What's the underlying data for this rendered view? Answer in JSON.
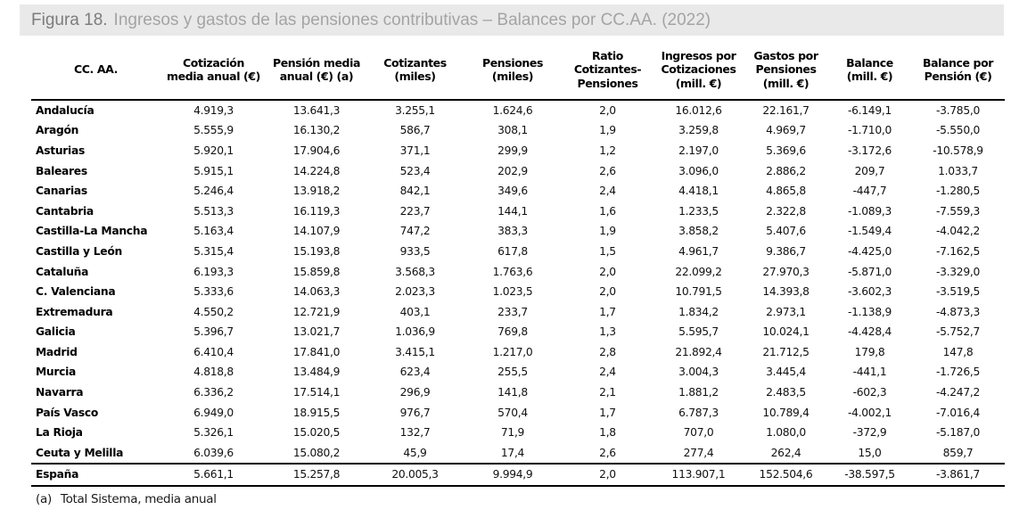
{
  "title": {
    "label": "Figura 18.",
    "text": "Ingresos y gastos de las pensiones contributivas – Balances por CC.AA. (2022)"
  },
  "colors": {
    "title_bar_bg": "#e9e9e9",
    "title_label": "#7c7c7c",
    "title_text": "#a4a4a4",
    "table_text": "#111111",
    "rule": "#000000"
  },
  "table": {
    "columns": [
      "CC. AA.",
      "Cotización\nmedia anual (€)",
      "Pensión media\nanual (€) (a)",
      "Cotizantes\n(miles)",
      "Pensiones\n(miles)",
      "Ratio\nCotizantes-\nPensiones",
      "Ingresos por\nCotizaciones\n(mill. €)",
      "Gastos por\nPensiones\n(mill. €)",
      "Balance\n(mill. €)",
      "Balance por\nPensión (€)"
    ],
    "rows": [
      {
        "name": "Andalucía",
        "values": [
          "4.919,3",
          "13.641,3",
          "3.255,1",
          "1.624,6",
          "2,0",
          "16.012,6",
          "22.161,7",
          "-6.149,1",
          "-3.785,0"
        ]
      },
      {
        "name": "Aragón",
        "values": [
          "5.555,9",
          "16.130,2",
          "586,7",
          "308,1",
          "1,9",
          "3.259,8",
          "4.969,7",
          "-1.710,0",
          "-5.550,0"
        ]
      },
      {
        "name": "Asturias",
        "values": [
          "5.920,1",
          "17.904,6",
          "371,1",
          "299,9",
          "1,2",
          "2.197,0",
          "5.369,6",
          "-3.172,6",
          "-10.578,9"
        ]
      },
      {
        "name": "Baleares",
        "values": [
          "5.915,1",
          "14.224,8",
          "523,4",
          "202,9",
          "2,6",
          "3.096,0",
          "2.886,2",
          "209,7",
          "1.033,7"
        ]
      },
      {
        "name": "Canarias",
        "values": [
          "5.246,4",
          "13.918,2",
          "842,1",
          "349,6",
          "2,4",
          "4.418,1",
          "4.865,8",
          "-447,7",
          "-1.280,5"
        ]
      },
      {
        "name": "Cantabria",
        "values": [
          "5.513,3",
          "16.119,3",
          "223,7",
          "144,1",
          "1,6",
          "1.233,5",
          "2.322,8",
          "-1.089,3",
          "-7.559,3"
        ]
      },
      {
        "name": "Castilla-La Mancha",
        "values": [
          "5.163,4",
          "14.107,9",
          "747,2",
          "383,3",
          "1,9",
          "3.858,2",
          "5.407,6",
          "-1.549,4",
          "-4.042,2"
        ]
      },
      {
        "name": "Castilla y León",
        "values": [
          "5.315,4",
          "15.193,8",
          "933,5",
          "617,8",
          "1,5",
          "4.961,7",
          "9.386,7",
          "-4.425,0",
          "-7.162,5"
        ]
      },
      {
        "name": "Cataluña",
        "values": [
          "6.193,3",
          "15.859,8",
          "3.568,3",
          "1.763,6",
          "2,0",
          "22.099,2",
          "27.970,3",
          "-5.871,0",
          "-3.329,0"
        ]
      },
      {
        "name": "C. Valenciana",
        "values": [
          "5.333,6",
          "14.063,3",
          "2.023,3",
          "1.023,5",
          "2,0",
          "10.791,5",
          "14.393,8",
          "-3.602,3",
          "-3.519,5"
        ]
      },
      {
        "name": "Extremadura",
        "values": [
          "4.550,2",
          "12.721,9",
          "403,1",
          "233,7",
          "1,7",
          "1.834,2",
          "2.973,1",
          "-1.138,9",
          "-4.873,3"
        ]
      },
      {
        "name": "Galicia",
        "values": [
          "5.396,7",
          "13.021,7",
          "1.036,9",
          "769,8",
          "1,3",
          "5.595,7",
          "10.024,1",
          "-4.428,4",
          "-5.752,7"
        ]
      },
      {
        "name": "Madrid",
        "values": [
          "6.410,4",
          "17.841,0",
          "3.415,1",
          "1.217,0",
          "2,8",
          "21.892,4",
          "21.712,5",
          "179,8",
          "147,8"
        ]
      },
      {
        "name": "Murcia",
        "values": [
          "4.818,8",
          "13.484,9",
          "623,4",
          "255,5",
          "2,4",
          "3.004,3",
          "3.445,4",
          "-441,1",
          "-1.726,5"
        ]
      },
      {
        "name": "Navarra",
        "values": [
          "6.336,2",
          "17.514,1",
          "296,9",
          "141,8",
          "2,1",
          "1.881,2",
          "2.483,5",
          "-602,3",
          "-4.247,2"
        ]
      },
      {
        "name": "País Vasco",
        "values": [
          "6.949,0",
          "18.915,5",
          "976,7",
          "570,4",
          "1,7",
          "6.787,3",
          "10.789,4",
          "-4.002,1",
          "-7.016,4"
        ]
      },
      {
        "name": "La Rioja",
        "values": [
          "5.326,1",
          "15.020,5",
          "132,7",
          "71,9",
          "1,8",
          "707,0",
          "1.080,0",
          "-372,9",
          "-5.187,0"
        ]
      },
      {
        "name": "Ceuta y Melilla",
        "values": [
          "6.039,6",
          "15.080,2",
          "45,9",
          "17,4",
          "2,6",
          "277,4",
          "262,4",
          "15,0",
          "859,7"
        ]
      }
    ],
    "total_row": {
      "name": "España",
      "values": [
        "5.661,1",
        "15.257,8",
        "20.005,3",
        "9.994,9",
        "2,0",
        "113.907,1",
        "152.504,6",
        "-38.597,5",
        "-3.861,7"
      ]
    },
    "footnote_marker": "(a)",
    "footnote_text": "Total Sistema, media anual"
  }
}
